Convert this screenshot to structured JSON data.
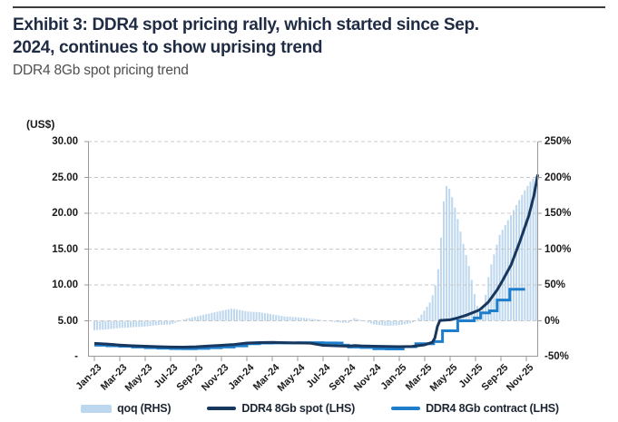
{
  "header": {
    "title_line1": "Exhibit 3: DDR4 spot pricing rally, which started since Sep.",
    "title_line2": "2024, continues to show uprising trend",
    "subtitle": "DDR4 8Gb spot pricing trend"
  },
  "chart_data": {
    "type": "combo (bar area + line)",
    "title": "DDR4 8Gb spot pricing trend",
    "x_unit": "months, Jan-2023 to Dec-2025 (m = months since Jan-23)",
    "lhs_axis": {
      "unit": "(US$)",
      "min": 0,
      "max": 30,
      "ticks": [
        "30.00",
        "25.00",
        "20.00",
        "15.00",
        "10.00",
        "5.00",
        "-"
      ]
    },
    "rhs_axis": {
      "unit": "%",
      "min": -50,
      "max": 250,
      "ticks": [
        "250%",
        "200%",
        "150%",
        "100%",
        "50%",
        "0%",
        "-50%"
      ]
    },
    "x_axis": {
      "tick_labels": [
        "Jan-23",
        "Mar-23",
        "May-23",
        "Jul-23",
        "Sep-23",
        "Nov-23",
        "Jan-24",
        "Mar-24",
        "May-24",
        "Jul-24",
        "Sep-24",
        "Nov-24",
        "Jan-25",
        "Mar-25",
        "May-25",
        "Jul-25",
        "Sep-25",
        "Nov-25"
      ],
      "months_per_tick": 2
    },
    "grid": {
      "style": "dashed horizontal",
      "color": "#c8c8c8"
    },
    "axis_line_color": "#999999",
    "series": [
      {
        "name": "qoq (RHS)",
        "type": "bar",
        "axis": "RHS",
        "color": "#bdd7ee",
        "points": [
          [
            0,
            -13
          ],
          [
            1,
            -12
          ],
          [
            2,
            -10
          ],
          [
            3,
            -9
          ],
          [
            4,
            -8
          ],
          [
            5,
            -6
          ],
          [
            6,
            -5
          ],
          [
            6.5,
            -2
          ],
          [
            7,
            2
          ],
          [
            8,
            6
          ],
          [
            9,
            10
          ],
          [
            10,
            14
          ],
          [
            10.8,
            17
          ],
          [
            11.5,
            15
          ],
          [
            12,
            13
          ],
          [
            13,
            12
          ],
          [
            14,
            9
          ],
          [
            15,
            6
          ],
          [
            16,
            5
          ],
          [
            17,
            3
          ],
          [
            18,
            1
          ],
          [
            19,
            -2
          ],
          [
            20,
            -3
          ],
          [
            20.4,
            4
          ],
          [
            21,
            1
          ],
          [
            22,
            -5
          ],
          [
            23,
            -7
          ],
          [
            24,
            -6
          ],
          [
            25,
            -3
          ],
          [
            25.5,
            3
          ],
          [
            26,
            15
          ],
          [
            26.5,
            28
          ],
          [
            27,
            60
          ],
          [
            27.3,
            120
          ],
          [
            27.6,
            190
          ],
          [
            28,
            183
          ],
          [
            28.5,
            150
          ],
          [
            29,
            110
          ],
          [
            29.5,
            75
          ],
          [
            30,
            30
          ],
          [
            30.3,
            10
          ],
          [
            30.7,
            25
          ],
          [
            31.1,
            70
          ],
          [
            31.9,
            120
          ],
          [
            32.8,
            148
          ],
          [
            33.8,
            180
          ],
          [
            34.4,
            196
          ],
          [
            34.8,
            202
          ]
        ]
      },
      {
        "name": "DDR4 8Gb spot (LHS)",
        "type": "line",
        "axis": "LHS",
        "color": "#17375e",
        "points": [
          [
            0,
            1.85
          ],
          [
            1,
            1.75
          ],
          [
            2,
            1.62
          ],
          [
            3,
            1.52
          ],
          [
            4,
            1.45
          ],
          [
            5,
            1.4
          ],
          [
            6,
            1.35
          ],
          [
            7,
            1.33
          ],
          [
            8,
            1.38
          ],
          [
            9,
            1.48
          ],
          [
            10,
            1.58
          ],
          [
            11,
            1.7
          ],
          [
            12,
            1.9
          ],
          [
            13,
            1.97
          ],
          [
            14,
            2.0
          ],
          [
            15,
            1.95
          ],
          [
            16,
            1.92
          ],
          [
            17,
            1.88
          ],
          [
            18,
            1.58
          ],
          [
            19,
            1.52
          ],
          [
            20,
            1.47
          ],
          [
            20.5,
            1.55
          ],
          [
            21,
            1.5
          ],
          [
            22,
            1.45
          ],
          [
            23,
            1.42
          ],
          [
            24,
            1.4
          ],
          [
            25,
            1.42
          ],
          [
            26,
            1.65
          ],
          [
            26.6,
            2.0
          ],
          [
            26.8,
            2.6
          ],
          [
            27,
            4.2
          ],
          [
            27.2,
            5.05
          ],
          [
            28,
            5.15
          ],
          [
            28.6,
            5.4
          ],
          [
            29.3,
            5.8
          ],
          [
            30.3,
            6.5
          ],
          [
            31,
            7.6
          ],
          [
            31.7,
            9.3
          ],
          [
            32,
            10.2
          ],
          [
            32.8,
            12.8
          ],
          [
            33.5,
            16.1
          ],
          [
            34.2,
            19.7
          ],
          [
            34.6,
            22.5
          ],
          [
            34.9,
            25.4
          ]
        ]
      },
      {
        "name": "DDR4 8Gb contract (LHS)",
        "type": "step-line",
        "axis": "LHS",
        "color": "#1e7ecb",
        "points": [
          [
            0,
            1.6
          ],
          [
            1,
            1.52
          ],
          [
            2,
            1.45
          ],
          [
            3,
            1.35
          ],
          [
            4,
            1.25
          ],
          [
            5,
            1.18
          ],
          [
            6,
            1.12
          ],
          [
            7,
            1.1
          ],
          [
            8,
            1.15
          ],
          [
            9,
            1.25
          ],
          [
            10,
            1.35
          ],
          [
            11,
            1.5
          ],
          [
            12,
            1.8
          ],
          [
            13,
            1.9
          ],
          [
            14,
            1.92
          ],
          [
            15,
            1.92
          ],
          [
            16,
            1.95
          ],
          [
            17,
            1.95
          ],
          [
            18,
            1.92
          ],
          [
            19,
            1.9
          ],
          [
            19.5,
            1.6
          ],
          [
            20,
            1.35
          ],
          [
            21,
            1.28
          ],
          [
            22,
            1.1
          ],
          [
            23,
            1.08
          ],
          [
            24,
            1.08
          ],
          [
            24.3,
            1.4
          ],
          [
            25.3,
            1.8
          ],
          [
            26.7,
            2.1
          ],
          [
            27.4,
            3.6
          ],
          [
            28.6,
            5.0
          ],
          [
            29.9,
            5.4
          ],
          [
            30.4,
            6.1
          ],
          [
            31.1,
            6.4
          ],
          [
            31.7,
            7.9
          ],
          [
            32.7,
            9.4
          ],
          [
            33.9,
            9.4
          ]
        ]
      }
    ],
    "legend": [
      {
        "label": "qoq (RHS)",
        "swatch": "area",
        "color": "#bdd7ee"
      },
      {
        "label": "DDR4 8Gb spot (LHS)",
        "swatch": "line",
        "color": "#17375e"
      },
      {
        "label": "DDR4 8Gb contract (LHS)",
        "swatch": "line",
        "color": "#1e7ecb"
      }
    ]
  }
}
